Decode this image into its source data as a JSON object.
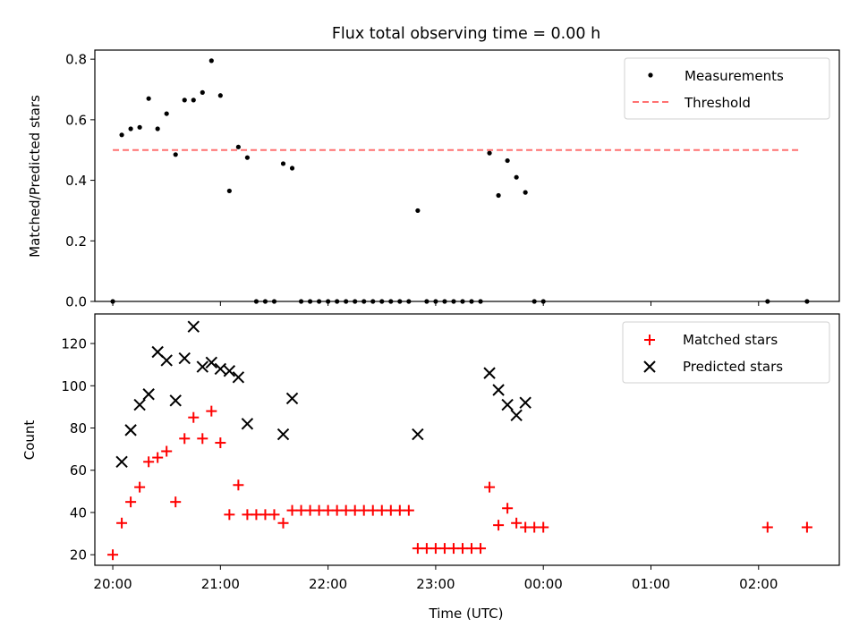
{
  "title": "Flux total observing time = 0.00 h",
  "colors": {
    "black": "#000000",
    "red": "#ff0000",
    "threshold": "#ff7070"
  },
  "chart_data": [
    {
      "type": "scatter",
      "ylabel": "Matched/Predicted stars",
      "ylim": [
        0,
        0.83
      ],
      "yticks": [
        0.0,
        0.2,
        0.4,
        0.6,
        0.8
      ],
      "ytick_labels": [
        "0.0",
        "0.2",
        "0.4",
        "0.6",
        "0.8"
      ],
      "xlim": [
        "19:50",
        "26:45"
      ],
      "x_tick_labels_visible": false,
      "legend_position": "upper-right",
      "series": [
        {
          "name": "Measurements",
          "marker": "dot",
          "x": [
            "20:00",
            "20:05",
            "20:10",
            "20:15",
            "20:20",
            "20:25",
            "20:30",
            "20:35",
            "20:40",
            "20:45",
            "20:50",
            "20:55",
            "21:00",
            "21:05",
            "21:10",
            "21:15",
            "21:20",
            "21:25",
            "21:30",
            "21:35",
            "21:40",
            "21:45",
            "21:50",
            "21:55",
            "22:00",
            "22:05",
            "22:10",
            "22:15",
            "22:20",
            "22:25",
            "22:30",
            "22:35",
            "22:40",
            "22:45",
            "22:50",
            "22:55",
            "23:00",
            "23:05",
            "23:10",
            "23:15",
            "23:20",
            "23:25",
            "23:30",
            "23:35",
            "23:40",
            "23:45",
            "23:50",
            "23:55",
            "24:00",
            "26:05",
            "26:27"
          ],
          "y": [
            0.0,
            0.55,
            0.57,
            0.575,
            0.67,
            0.57,
            0.62,
            0.485,
            0.665,
            0.665,
            0.69,
            0.795,
            0.68,
            0.365,
            0.51,
            0.475,
            0.0,
            0.0,
            0.0,
            0.455,
            0.44,
            0.0,
            0.0,
            0.0,
            0.0,
            0.0,
            0.0,
            0.0,
            0.0,
            0.0,
            0.0,
            0.0,
            0.0,
            0.0,
            0.3,
            0.0,
            0.0,
            0.0,
            0.0,
            0.0,
            0.0,
            0.0,
            0.49,
            0.35,
            0.465,
            0.41,
            0.36,
            0.0,
            0.0,
            0.0,
            0.0
          ]
        },
        {
          "name": "Threshold",
          "style": "dashed",
          "x": [
            "20:00",
            "26:24"
          ],
          "y": [
            0.5,
            0.5
          ]
        }
      ]
    },
    {
      "type": "scatter",
      "ylabel": "Count",
      "xlabel": "Time (UTC)",
      "ylim": [
        15,
        134
      ],
      "yticks": [
        20,
        40,
        60,
        80,
        100,
        120
      ],
      "ytick_labels": [
        "20",
        "40",
        "60",
        "80",
        "100",
        "120"
      ],
      "xlim": [
        "19:50",
        "26:45"
      ],
      "xticks": [
        "20:00",
        "21:00",
        "22:00",
        "23:00",
        "24:00",
        "25:00",
        "26:00"
      ],
      "xtick_labels": [
        "20:00",
        "21:00",
        "22:00",
        "23:00",
        "00:00",
        "01:00",
        "02:00"
      ],
      "legend_position": "upper-right",
      "series": [
        {
          "name": "Matched stars",
          "marker": "plus",
          "x": [
            "20:00",
            "20:05",
            "20:10",
            "20:15",
            "20:20",
            "20:25",
            "20:30",
            "20:35",
            "20:40",
            "20:45",
            "20:50",
            "20:55",
            "21:00",
            "21:05",
            "21:10",
            "21:15",
            "21:20",
            "21:25",
            "21:30",
            "21:35",
            "21:40",
            "21:45",
            "21:50",
            "21:55",
            "22:00",
            "22:05",
            "22:10",
            "22:15",
            "22:20",
            "22:25",
            "22:30",
            "22:35",
            "22:40",
            "22:45",
            "22:50",
            "22:55",
            "23:00",
            "23:05",
            "23:10",
            "23:15",
            "23:20",
            "23:25",
            "23:30",
            "23:35",
            "23:40",
            "23:45",
            "23:50",
            "23:55",
            "24:00",
            "26:05",
            "26:27"
          ],
          "y": [
            20,
            35,
            45,
            52,
            64,
            66,
            69,
            45,
            75,
            85,
            75,
            88,
            73,
            39,
            53,
            39,
            39,
            39,
            39,
            35,
            41,
            41,
            41,
            41,
            41,
            41,
            41,
            41,
            41,
            41,
            41,
            41,
            41,
            41,
            23,
            23,
            23,
            23,
            23,
            23,
            23,
            23,
            52,
            34,
            42,
            35,
            33,
            33,
            33,
            33,
            33
          ]
        },
        {
          "name": "Predicted stars",
          "marker": "x",
          "x": [
            "20:05",
            "20:10",
            "20:15",
            "20:20",
            "20:25",
            "20:30",
            "20:35",
            "20:40",
            "20:45",
            "20:50",
            "20:55",
            "21:00",
            "21:05",
            "21:10",
            "21:15",
            "21:35",
            "21:40",
            "22:50",
            "23:30",
            "23:35",
            "23:40",
            "23:45",
            "23:50"
          ],
          "y": [
            64,
            79,
            91,
            96,
            116,
            112,
            93,
            113,
            128,
            109,
            111,
            108,
            107,
            104,
            82,
            77,
            94,
            77,
            106,
            98,
            91,
            86,
            92
          ]
        }
      ]
    }
  ]
}
